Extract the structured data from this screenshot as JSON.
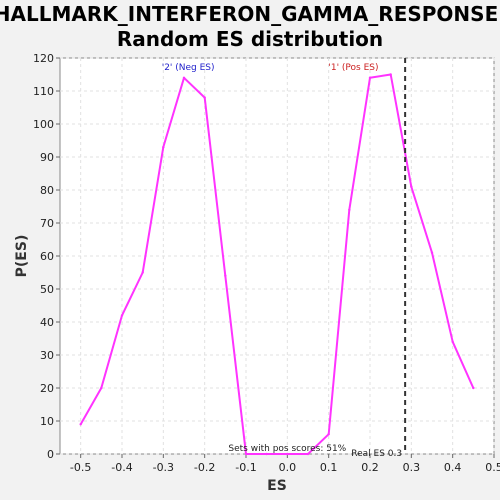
{
  "chart_data": {
    "type": "line",
    "title_line1": "HALLMARK_INTERFERON_GAMMA_RESPONSE:",
    "title_line2": "Random ES distribution",
    "xlabel": "ES",
    "ylabel": "P(ES)",
    "xlim": [
      -0.55,
      0.5
    ],
    "ylim": [
      0,
      120
    ],
    "x_ticks": [
      -0.5,
      -0.4,
      -0.3,
      -0.2,
      -0.1,
      0.0,
      0.1,
      0.2,
      0.3,
      0.4,
      0.5
    ],
    "x_tick_labels": [
      "-0.5",
      "-0.4",
      "-0.3",
      "-0.2",
      "-0.1",
      "0.0",
      "0.1",
      "0.2",
      "0.3",
      "0.4",
      "0.5"
    ],
    "y_ticks": [
      0,
      10,
      20,
      30,
      40,
      50,
      60,
      70,
      80,
      90,
      100,
      110,
      120
    ],
    "grid": true,
    "series": [
      {
        "color": "#ff33ff",
        "x": [
          -0.5,
          -0.45,
          -0.4,
          -0.35,
          -0.3,
          -0.25,
          -0.2,
          -0.15,
          -0.1,
          -0.05,
          0.0,
          0.05,
          0.1,
          0.15,
          0.2,
          0.25,
          0.3,
          0.35,
          0.4,
          0.45
        ],
        "y": [
          9,
          20,
          42,
          55,
          93,
          114,
          108,
          54,
          0,
          0,
          0,
          0,
          6,
          74,
          114,
          115,
          81,
          61,
          34,
          20
        ]
      }
    ],
    "annotations": {
      "neg_label": "'2' (Neg ES)",
      "neg_color": "#2222cc",
      "pos_label": "'1' (Pos ES)",
      "pos_color": "#cc2222",
      "pos_scores": "Sets with pos scores: 51%",
      "real_es_label": "Real ES 0.3",
      "real_es_value": 0.285
    }
  }
}
